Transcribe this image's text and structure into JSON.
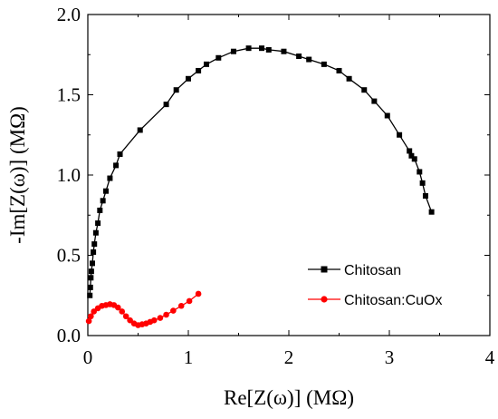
{
  "chart_data": {
    "type": "scatter",
    "xlabel": "Re[Z(ω)] (MΩ)",
    "ylabel": "-Im[Z(ω)] (MΩ)",
    "xlim": [
      0,
      4
    ],
    "ylim": [
      0,
      2.0
    ],
    "x_ticks": [
      0,
      1,
      2,
      3,
      4
    ],
    "x_tick_labels": [
      "0",
      "1",
      "2",
      "3",
      "4"
    ],
    "y_ticks": [
      0,
      0.5,
      1.0,
      1.5,
      2.0
    ],
    "y_tick_labels": [
      "0.0",
      "0.5",
      "1.0",
      "1.5",
      "2.0"
    ],
    "grid": false,
    "legend_position": "bottom-right",
    "series": [
      {
        "name": "Chitosan",
        "color": "#000000",
        "marker": "square",
        "x": [
          0.02,
          0.025,
          0.03,
          0.035,
          0.045,
          0.055,
          0.065,
          0.08,
          0.1,
          0.12,
          0.15,
          0.18,
          0.22,
          0.28,
          0.32,
          0.52,
          0.78,
          0.88,
          1.0,
          1.1,
          1.18,
          1.3,
          1.45,
          1.6,
          1.73,
          1.8,
          1.95,
          2.1,
          2.2,
          2.35,
          2.5,
          2.6,
          2.75,
          2.85,
          2.98,
          3.1,
          3.2,
          3.22,
          3.25,
          3.3,
          3.33,
          3.36,
          3.42
        ],
        "y": [
          0.25,
          0.3,
          0.36,
          0.4,
          0.45,
          0.52,
          0.57,
          0.64,
          0.7,
          0.78,
          0.84,
          0.9,
          0.98,
          1.06,
          1.13,
          1.28,
          1.44,
          1.53,
          1.6,
          1.65,
          1.69,
          1.73,
          1.77,
          1.79,
          1.79,
          1.78,
          1.77,
          1.74,
          1.72,
          1.69,
          1.65,
          1.6,
          1.53,
          1.46,
          1.37,
          1.25,
          1.15,
          1.12,
          1.1,
          1.02,
          0.95,
          0.87,
          0.77
        ]
      },
      {
        "name": "Chitosan:CuOx",
        "color": "#ff0000",
        "marker": "circle",
        "x": [
          0.01,
          0.03,
          0.06,
          0.1,
          0.14,
          0.18,
          0.22,
          0.26,
          0.3,
          0.34,
          0.38,
          0.42,
          0.46,
          0.5,
          0.54,
          0.58,
          0.62,
          0.66,
          0.72,
          0.78,
          0.85,
          0.93,
          1.01,
          1.1
        ],
        "y": [
          0.09,
          0.12,
          0.15,
          0.17,
          0.185,
          0.19,
          0.195,
          0.19,
          0.175,
          0.15,
          0.12,
          0.095,
          0.075,
          0.065,
          0.07,
          0.075,
          0.085,
          0.095,
          0.11,
          0.13,
          0.155,
          0.185,
          0.215,
          0.26
        ]
      }
    ]
  }
}
